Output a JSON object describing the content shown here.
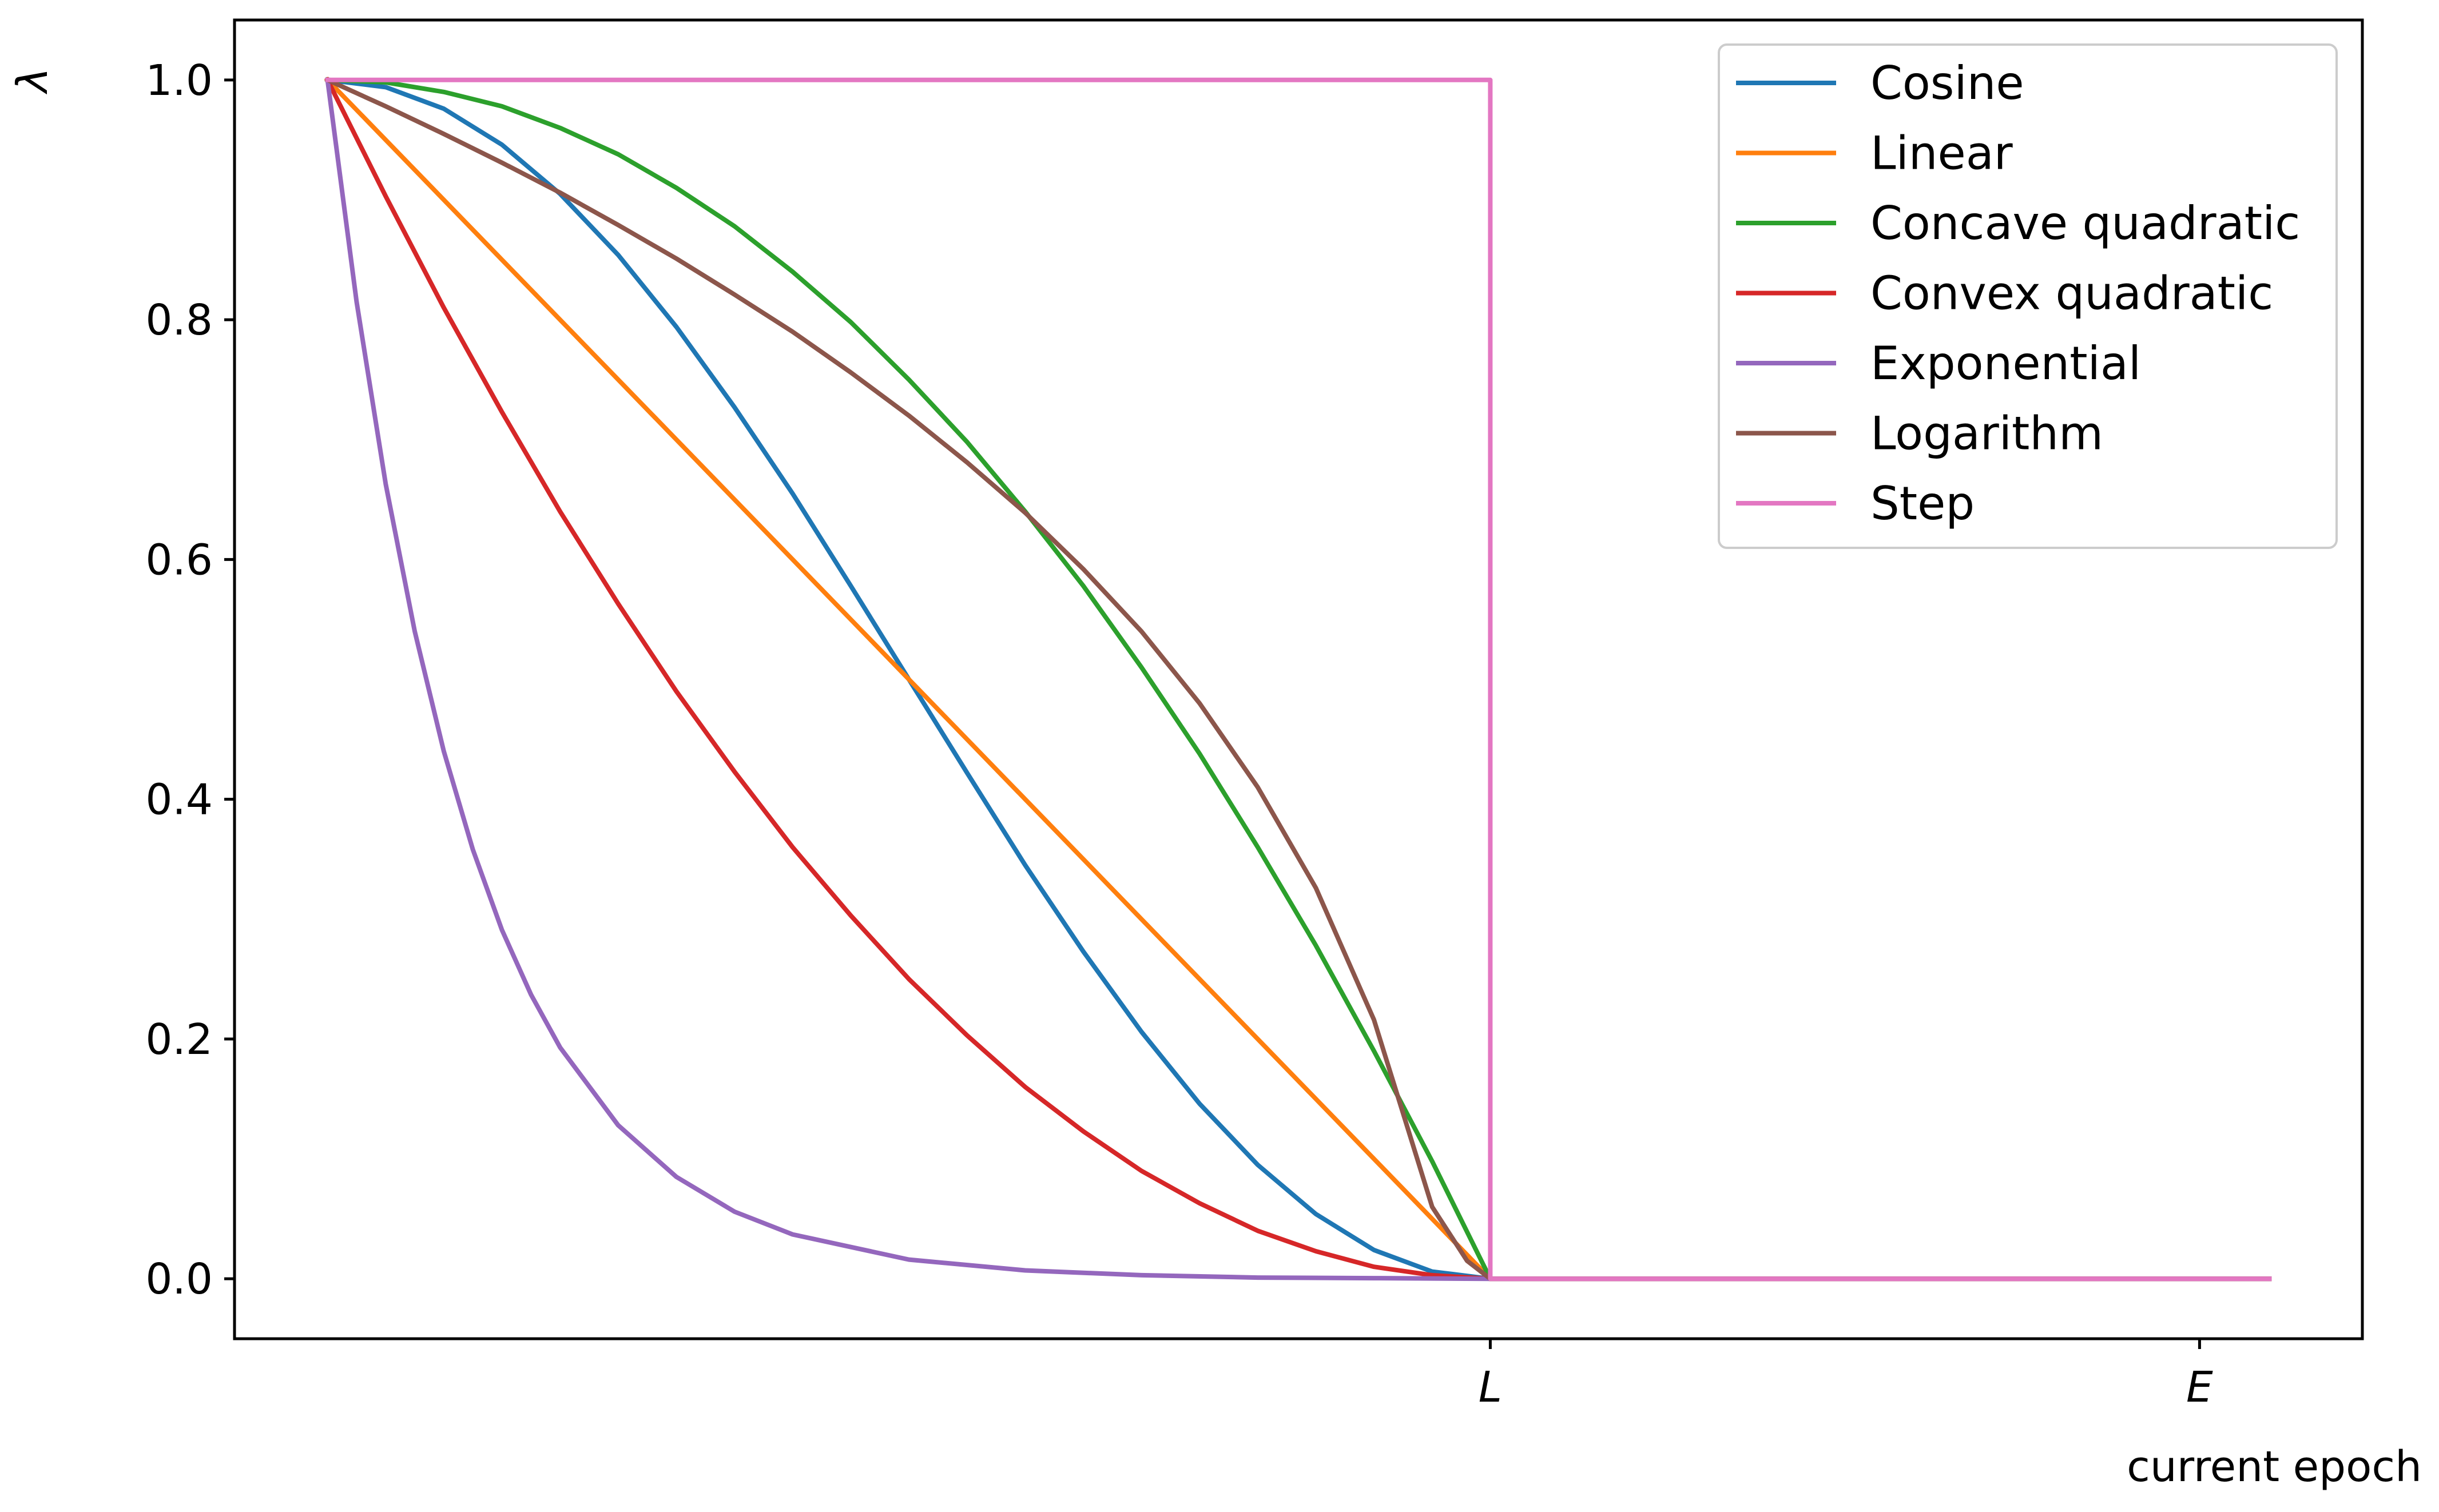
{
  "chart_data": {
    "type": "line",
    "xlabel": "current epoch",
    "ylabel": "λ",
    "xlim": [
      -0.08,
      1.75
    ],
    "ylim": [
      -0.05,
      1.05
    ],
    "grid": false,
    "legend_position": "top-right",
    "x_ticks": [
      {
        "value": 1.0,
        "label": "L"
      },
      {
        "value": 1.61,
        "label": "E"
      }
    ],
    "y_ticks": [
      {
        "value": 0.0,
        "label": "0.0"
      },
      {
        "value": 0.2,
        "label": "0.2"
      },
      {
        "value": 0.4,
        "label": "0.4"
      },
      {
        "value": 0.6,
        "label": "0.6"
      },
      {
        "value": 0.8,
        "label": "0.8"
      },
      {
        "value": 1.0,
        "label": "1.0"
      }
    ],
    "x_end": 1.67,
    "series": [
      {
        "name": "Cosine",
        "color": "#1f77b4",
        "x": [
          0,
          0.05,
          0.1,
          0.15,
          0.2,
          0.25,
          0.3,
          0.35,
          0.4,
          0.45,
          0.5,
          0.55,
          0.6,
          0.65,
          0.7,
          0.75,
          0.8,
          0.85,
          0.9,
          0.95,
          1.0,
          1.67
        ],
        "y": [
          1.0,
          0.994,
          0.976,
          0.946,
          0.905,
          0.854,
          0.794,
          0.727,
          0.655,
          0.578,
          0.5,
          0.422,
          0.345,
          0.273,
          0.206,
          0.146,
          0.095,
          0.054,
          0.024,
          0.006,
          0.0,
          0.0
        ]
      },
      {
        "name": "Linear",
        "color": "#ff7f0e",
        "x": [
          0,
          1.0,
          1.67
        ],
        "y": [
          1.0,
          0.0,
          0.0
        ]
      },
      {
        "name": "Concave quadratic",
        "color": "#2ca02c",
        "x": [
          0,
          0.05,
          0.1,
          0.15,
          0.2,
          0.25,
          0.3,
          0.35,
          0.4,
          0.45,
          0.5,
          0.55,
          0.6,
          0.65,
          0.7,
          0.75,
          0.8,
          0.85,
          0.9,
          0.95,
          1.0,
          1.67
        ],
        "y": [
          1.0,
          0.998,
          0.99,
          0.978,
          0.96,
          0.938,
          0.91,
          0.878,
          0.84,
          0.798,
          0.75,
          0.698,
          0.64,
          0.578,
          0.51,
          0.438,
          0.36,
          0.278,
          0.19,
          0.098,
          0.0,
          0.0
        ]
      },
      {
        "name": "Convex quadratic",
        "color": "#d62728",
        "x": [
          0,
          0.05,
          0.1,
          0.15,
          0.2,
          0.25,
          0.3,
          0.35,
          0.4,
          0.45,
          0.5,
          0.55,
          0.6,
          0.65,
          0.7,
          0.75,
          0.8,
          0.85,
          0.9,
          0.95,
          1.0,
          1.67
        ],
        "y": [
          1.0,
          0.903,
          0.81,
          0.723,
          0.64,
          0.563,
          0.49,
          0.423,
          0.36,
          0.303,
          0.25,
          0.203,
          0.16,
          0.123,
          0.09,
          0.063,
          0.04,
          0.023,
          0.01,
          0.003,
          0.0,
          0.0
        ]
      },
      {
        "name": "Exponential",
        "color": "#9467bd",
        "x": [
          0,
          0.025,
          0.05,
          0.075,
          0.1,
          0.125,
          0.15,
          0.175,
          0.2,
          0.25,
          0.3,
          0.35,
          0.4,
          0.5,
          0.6,
          0.7,
          0.8,
          0.9,
          1.0,
          1.67
        ],
        "y": [
          1.0,
          0.815,
          0.663,
          0.54,
          0.44,
          0.358,
          0.291,
          0.237,
          0.193,
          0.128,
          0.085,
          0.056,
          0.037,
          0.016,
          0.007,
          0.003,
          0.001,
          0.0005,
          0.0,
          0.0
        ]
      },
      {
        "name": "Logarithm",
        "color": "#8c564b",
        "x": [
          0,
          0.05,
          0.1,
          0.15,
          0.2,
          0.25,
          0.3,
          0.35,
          0.4,
          0.45,
          0.5,
          0.55,
          0.6,
          0.65,
          0.7,
          0.75,
          0.8,
          0.85,
          0.9,
          0.95,
          0.98,
          1.0,
          1.67
        ],
        "y": [
          1.0,
          0.978,
          0.955,
          0.931,
          0.906,
          0.879,
          0.851,
          0.821,
          0.79,
          0.756,
          0.72,
          0.681,
          0.639,
          0.592,
          0.54,
          0.48,
          0.41,
          0.326,
          0.216,
          0.06,
          0.015,
          0.0,
          0.0
        ]
      },
      {
        "name": "Step",
        "color": "#e377c2",
        "x": [
          0,
          1.0,
          1.0,
          1.67
        ],
        "y": [
          1.0,
          1.0,
          0.0,
          0.0
        ]
      }
    ]
  }
}
